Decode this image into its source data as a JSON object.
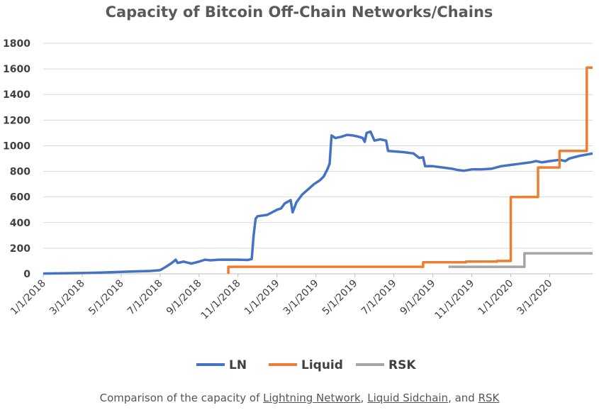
{
  "chart_data": {
    "type": "line",
    "title": "Capacity of Bitcoin Off-Chain Networks/Chains",
    "xlabel": "",
    "ylabel": "",
    "ylim": [
      0,
      1800
    ],
    "yticks": [
      0,
      200,
      400,
      600,
      800,
      1000,
      1200,
      1400,
      1600,
      1800
    ],
    "xlim": [
      0,
      28.2
    ],
    "xticks": [
      {
        "label": "1/1/2018",
        "month": 0
      },
      {
        "label": "3/1/2018",
        "month": 2
      },
      {
        "label": "5/1/2018",
        "month": 4
      },
      {
        "label": "7/1/2018",
        "month": 6
      },
      {
        "label": "9/1/2018",
        "month": 8
      },
      {
        "label": "11/1/2018",
        "month": 10
      },
      {
        "label": "1/1/2019",
        "month": 12
      },
      {
        "label": "3/1/2019",
        "month": 14
      },
      {
        "label": "5/1/2019",
        "month": 16
      },
      {
        "label": "7/1/2019",
        "month": 18
      },
      {
        "label": "9/1/2019",
        "month": 20
      },
      {
        "label": "11/1/2019",
        "month": 22
      },
      {
        "label": "1/1/2020",
        "month": 24
      },
      {
        "label": "3/1/2020",
        "month": 26
      }
    ],
    "x_units": "months since 1/1/2018",
    "series": [
      {
        "name": "LN",
        "color": "#4472c4",
        "points": [
          [
            0,
            2
          ],
          [
            1,
            4
          ],
          [
            2,
            6
          ],
          [
            3,
            10
          ],
          [
            4,
            15
          ],
          [
            5,
            20
          ],
          [
            5.5,
            22
          ],
          [
            6,
            28
          ],
          [
            6.3,
            55
          ],
          [
            6.6,
            85
          ],
          [
            6.8,
            110
          ],
          [
            6.9,
            85
          ],
          [
            7.2,
            95
          ],
          [
            7.6,
            80
          ],
          [
            8,
            95
          ],
          [
            8.3,
            110
          ],
          [
            8.6,
            105
          ],
          [
            9,
            110
          ],
          [
            9.5,
            110
          ],
          [
            10,
            110
          ],
          [
            10.5,
            108
          ],
          [
            10.7,
            115
          ],
          [
            10.8,
            300
          ],
          [
            10.9,
            430
          ],
          [
            11,
            450
          ],
          [
            11.5,
            460
          ],
          [
            12,
            500
          ],
          [
            12.2,
            510
          ],
          [
            12.4,
            550
          ],
          [
            12.7,
            575
          ],
          [
            12.8,
            480
          ],
          [
            13,
            560
          ],
          [
            13.3,
            620
          ],
          [
            13.6,
            660
          ],
          [
            13.9,
            700
          ],
          [
            14.2,
            730
          ],
          [
            14.4,
            760
          ],
          [
            14.6,
            820
          ],
          [
            14.7,
            860
          ],
          [
            14.8,
            1080
          ],
          [
            15,
            1060
          ],
          [
            15.3,
            1070
          ],
          [
            15.6,
            1085
          ],
          [
            15.9,
            1080
          ],
          [
            16.2,
            1070
          ],
          [
            16.4,
            1060
          ],
          [
            16.5,
            1030
          ],
          [
            16.6,
            1100
          ],
          [
            16.8,
            1110
          ],
          [
            17,
            1040
          ],
          [
            17.3,
            1050
          ],
          [
            17.6,
            1040
          ],
          [
            17.7,
            960
          ],
          [
            18.5,
            950
          ],
          [
            19,
            940
          ],
          [
            19.3,
            905
          ],
          [
            19.5,
            910
          ],
          [
            19.6,
            840
          ],
          [
            20,
            840
          ],
          [
            20.5,
            830
          ],
          [
            21,
            820
          ],
          [
            21.3,
            810
          ],
          [
            21.6,
            805
          ],
          [
            22,
            815
          ],
          [
            22.5,
            815
          ],
          [
            23,
            820
          ],
          [
            23.5,
            840
          ],
          [
            24,
            850
          ],
          [
            24.5,
            860
          ],
          [
            25,
            870
          ],
          [
            25.3,
            880
          ],
          [
            25.6,
            870
          ],
          [
            26,
            880
          ],
          [
            26.5,
            890
          ],
          [
            26.8,
            880
          ],
          [
            27,
            900
          ],
          [
            27.5,
            920
          ],
          [
            28.2,
            940
          ]
        ]
      },
      {
        "name": "Liquid",
        "color": "#ed7d31",
        "points": [
          [
            9.5,
            0
          ],
          [
            9.5,
            55
          ],
          [
            19.5,
            55
          ],
          [
            19.5,
            90
          ],
          [
            21.7,
            90
          ],
          [
            21.7,
            95
          ],
          [
            23.3,
            95
          ],
          [
            23.3,
            100
          ],
          [
            24,
            100
          ],
          [
            24,
            600
          ],
          [
            25.4,
            600
          ],
          [
            25.4,
            830
          ],
          [
            26.5,
            830
          ],
          [
            26.5,
            960
          ],
          [
            27.9,
            960
          ],
          [
            27.9,
            1610
          ],
          [
            28.2,
            1610
          ]
        ]
      },
      {
        "name": "RSK",
        "color": "#a5a5a5",
        "points": [
          [
            20.8,
            55
          ],
          [
            24.7,
            55
          ],
          [
            24.7,
            160
          ],
          [
            28.2,
            160
          ]
        ]
      }
    ],
    "legend": [
      {
        "name": "LN",
        "color": "#4472c4"
      },
      {
        "name": "Liquid",
        "color": "#ed7d31"
      },
      {
        "name": "RSK",
        "color": "#a5a5a5"
      }
    ],
    "legend_position": "bottom-center"
  },
  "caption": {
    "prefix": "Comparison of the capacity of ",
    "link1": "Lightning Network",
    "sep1": ", ",
    "link2": "Liquid Sidchain",
    "sep2": ", and ",
    "link3": "RSK"
  }
}
